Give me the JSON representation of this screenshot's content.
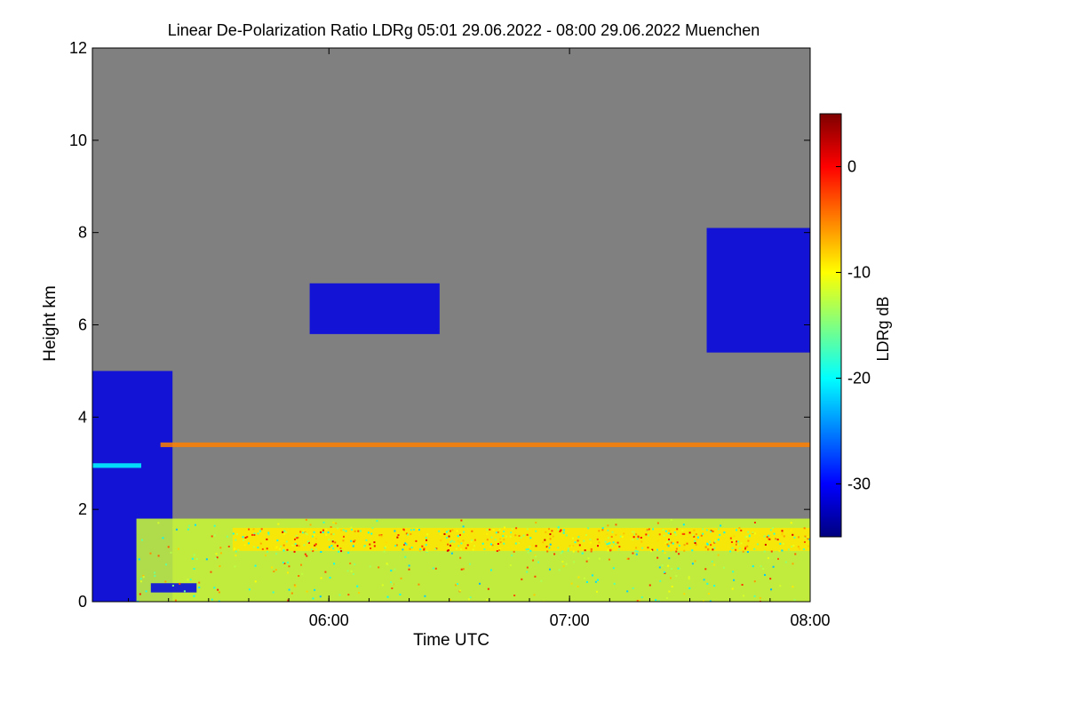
{
  "chart_data": {
    "type": "heatmap",
    "title": "Linear De-Polarization Ratio LDRg   05:01 29.06.2022 - 08:00 29.06.2022 Muenchen",
    "xlabel": "Time UTC",
    "ylabel": "Height km",
    "x_unit": "hours UTC",
    "xlim": [
      5.017,
      8.0
    ],
    "ylim": [
      0,
      12
    ],
    "x_ticks": [
      {
        "value": 6.0,
        "label": "06:00"
      },
      {
        "value": 7.0,
        "label": "07:00"
      },
      {
        "value": 8.0,
        "label": "08:00"
      }
    ],
    "y_ticks": [
      {
        "value": 0,
        "label": "0"
      },
      {
        "value": 2,
        "label": "2"
      },
      {
        "value": 4,
        "label": "4"
      },
      {
        "value": 6,
        "label": "6"
      },
      {
        "value": 8,
        "label": "8"
      },
      {
        "value": 10,
        "label": "10"
      },
      {
        "value": 12,
        "label": "12"
      }
    ],
    "colorbar": {
      "label": "LDRg dB",
      "min": -35,
      "max": 5,
      "ticks": [
        {
          "value": 0,
          "label": "0"
        },
        {
          "value": -10,
          "label": "-10"
        },
        {
          "value": -20,
          "label": "-20"
        },
        {
          "value": -30,
          "label": "-30"
        }
      ],
      "colors": [
        "#00007f",
        "#0000ff",
        "#0080ff",
        "#00ffff",
        "#80ff80",
        "#ffff00",
        "#ff8000",
        "#ff0000",
        "#7f0000"
      ]
    },
    "background_color": "#808080",
    "regions": [
      {
        "name": "low-cloud-left",
        "t_start": 5.017,
        "t_end": 5.35,
        "h_bottom": 0.0,
        "h_top": 5.0,
        "ldr_db": -31
      },
      {
        "name": "low-cloud-cyan-band",
        "t_start": 5.017,
        "t_end": 5.22,
        "h_bottom": 2.9,
        "h_top": 3.0,
        "ldr_db": -20
      },
      {
        "name": "mid-cloud-streak",
        "t_start": 5.92,
        "t_end": 6.46,
        "h_bottom": 5.8,
        "h_top": 6.9,
        "ldr_db": -31
      },
      {
        "name": "high-cloud-right",
        "t_start": 7.57,
        "t_end": 8.0,
        "h_bottom": 5.4,
        "h_top": 8.1,
        "ldr_db": -31
      },
      {
        "name": "boundary-layer-aerosol",
        "t_start": 5.2,
        "t_end": 8.0,
        "h_bottom": 0.0,
        "h_top": 1.8,
        "ldr_db": -12
      },
      {
        "name": "aerosol-layer-yellow",
        "t_start": 5.6,
        "t_end": 8.0,
        "h_bottom": 1.1,
        "h_top": 1.6,
        "ldr_db": -9
      },
      {
        "name": "thin-layer-3.4km",
        "t_start": 5.3,
        "t_end": 8.0,
        "h_bottom": 3.35,
        "h_top": 3.45,
        "ldr_db": -5
      },
      {
        "name": "surface-blue-strip",
        "t_start": 5.26,
        "t_end": 5.45,
        "h_bottom": 0.2,
        "h_top": 0.4,
        "ldr_db": -31
      }
    ]
  }
}
